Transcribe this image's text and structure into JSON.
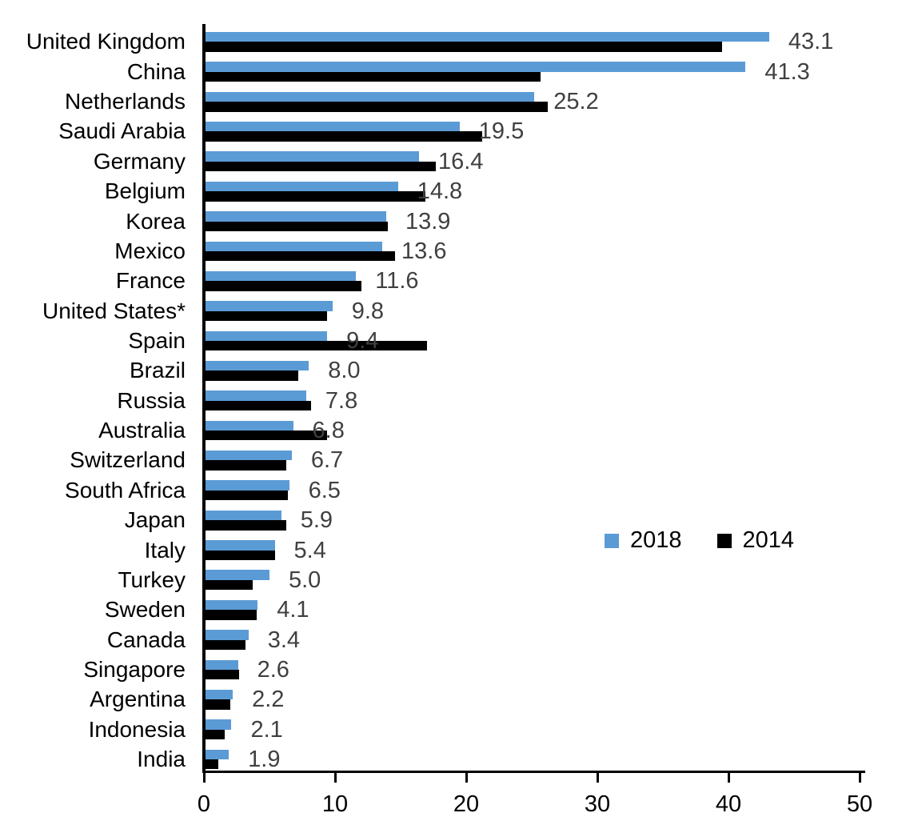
{
  "chart_data": {
    "type": "bar",
    "orientation": "horizontal",
    "title": "",
    "xlabel": "",
    "ylabel": "",
    "xlim": [
      0,
      50
    ],
    "x_ticks": [
      0,
      10,
      20,
      30,
      40,
      50
    ],
    "grid": false,
    "legend_position": "center-right",
    "categories": [
      "United Kingdom",
      "China",
      "Netherlands",
      "Saudi Arabia",
      "Germany",
      "Belgium",
      "Korea",
      "Mexico",
      "France",
      "United States*",
      "Spain",
      "Brazil",
      "Russia",
      "Australia",
      "Switzerland",
      "South Africa",
      "Japan",
      "Italy",
      "Turkey",
      "Sweden",
      "Canada",
      "Singapore",
      "Argentina",
      "Indonesia",
      "India"
    ],
    "series": [
      {
        "name": "2018",
        "color": "#5B9BD5",
        "values": [
          43.1,
          41.3,
          25.2,
          19.5,
          16.4,
          14.8,
          13.9,
          13.6,
          11.6,
          9.8,
          9.4,
          8.0,
          7.8,
          6.8,
          6.7,
          6.5,
          5.9,
          5.4,
          5.0,
          4.1,
          3.4,
          2.6,
          2.2,
          2.1,
          1.9
        ]
      },
      {
        "name": "2014",
        "color": "#000000",
        "values": [
          39.5,
          25.7,
          26.2,
          21.2,
          17.7,
          16.9,
          14.0,
          14.6,
          12.0,
          9.4,
          17.0,
          7.2,
          8.2,
          9.4,
          6.3,
          6.4,
          6.3,
          5.4,
          3.7,
          4.0,
          3.2,
          2.7,
          2.0,
          1.6,
          1.1
        ]
      }
    ],
    "value_labels_2018": [
      "43.1",
      "41.3",
      "25.2",
      "19.5",
      "16.4",
      "14.8",
      "13.9",
      "13.6",
      "11.6",
      "9.8",
      "9.4",
      "8.0",
      "7.8",
      "6.8",
      "6.7",
      "6.5",
      "5.9",
      "5.4",
      "5.0",
      "4.1",
      "3.4",
      "2.6",
      "2.2",
      "2.1",
      "1.9"
    ],
    "tick_labels": [
      "0",
      "10",
      "20",
      "30",
      "40",
      "50"
    ]
  },
  "colors": {
    "series_2018": "#5B9BD5",
    "series_2014": "#000000",
    "value_label": "#404040",
    "axis": "#000000",
    "background": "#ffffff"
  }
}
